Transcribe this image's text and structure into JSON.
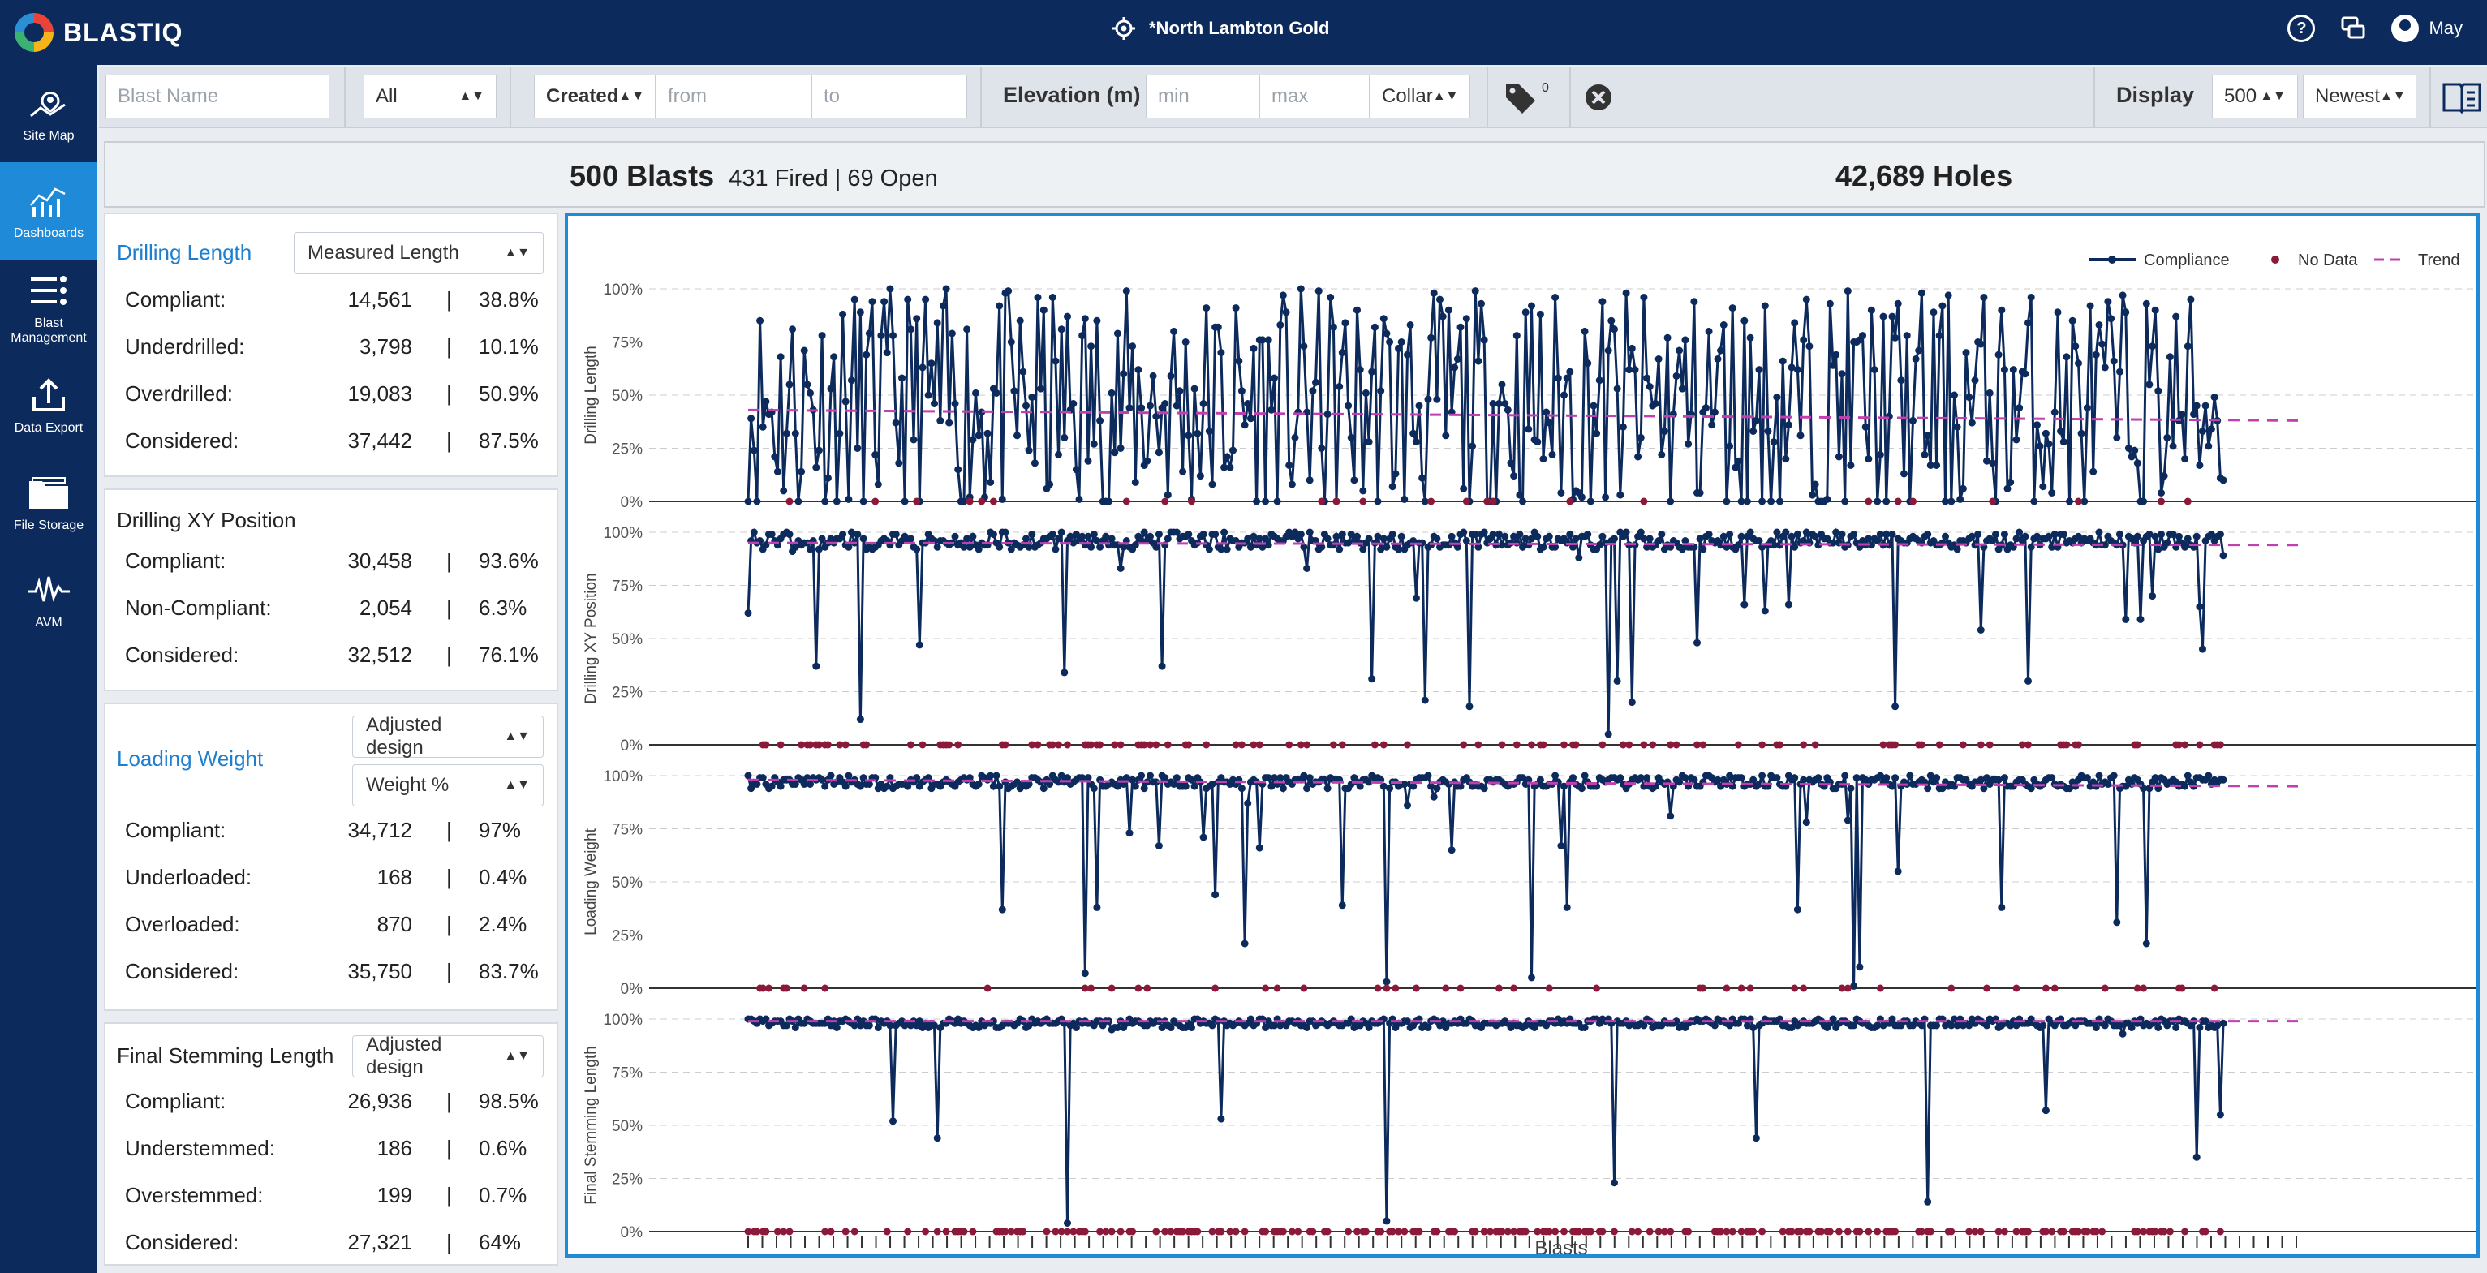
{
  "app": {
    "logo": "BLASTIQ",
    "site": "*North Lambton Gold",
    "user": "May",
    "help_icon": "question-icon",
    "chat_icon": "chat-icon"
  },
  "sidebar": {
    "items": [
      {
        "label": "Site Map",
        "icon": "map-icon",
        "active": false
      },
      {
        "label": "Dashboards",
        "icon": "chart-icon",
        "active": true
      },
      {
        "label": "Blast Management",
        "icon": "list-icon",
        "active": false
      },
      {
        "label": "Data Export",
        "icon": "upload-icon",
        "active": false
      },
      {
        "label": "File Storage",
        "icon": "folder-icon",
        "active": false
      },
      {
        "label": "AVM",
        "icon": "wave-icon",
        "active": false
      }
    ]
  },
  "filters": {
    "blast_name_placeholder": "Blast Name",
    "status": "All",
    "date_type": "Created",
    "from_placeholder": "from",
    "to_placeholder": "to",
    "elevation_label": "Elevation (m)",
    "min_placeholder": "min",
    "max_placeholder": "max",
    "elevation_ref": "Collar",
    "tag_count": "0",
    "display_label": "Display",
    "display_count": "500",
    "sort": "Newest"
  },
  "summary": {
    "blasts": "500 Blasts",
    "fired_open": "431 Fired | 69 Open",
    "holes": "42,689 Holes"
  },
  "cards": [
    {
      "title": "Drilling Length",
      "selects": [
        "Measured Length"
      ],
      "rows": [
        {
          "label": "Compliant:",
          "count": "14,561",
          "pct": "38.8%"
        },
        {
          "label": "Underdrilled:",
          "count": "3,798",
          "pct": "10.1%"
        },
        {
          "label": "Overdrilled:",
          "count": "19,083",
          "pct": "50.9%"
        },
        {
          "label": "Considered:",
          "count": "37,442",
          "pct": "87.5%"
        }
      ]
    },
    {
      "title": "Drilling XY Position",
      "selects": [],
      "rows": [
        {
          "label": "Compliant:",
          "count": "30,458",
          "pct": "93.6%"
        },
        {
          "label": "Non-Compliant:",
          "count": "2,054",
          "pct": "6.3%"
        },
        {
          "label": "Considered:",
          "count": "32,512",
          "pct": "76.1%"
        }
      ]
    },
    {
      "title": "Loading Weight",
      "selects": [
        "Adjusted design",
        "Weight %"
      ],
      "rows": [
        {
          "label": "Compliant:",
          "count": "34,712",
          "pct": "97%"
        },
        {
          "label": "Underloaded:",
          "count": "168",
          "pct": "0.4%"
        },
        {
          "label": "Overloaded:",
          "count": "870",
          "pct": "2.4%"
        },
        {
          "label": "Considered:",
          "count": "35,750",
          "pct": "83.7%"
        }
      ]
    },
    {
      "title": "Final Stemming Length",
      "selects": [
        "Adjusted design"
      ],
      "rows": [
        {
          "label": "Compliant:",
          "count": "26,936",
          "pct": "98.5%"
        },
        {
          "label": "Understemmed:",
          "count": "186",
          "pct": "0.6%"
        },
        {
          "label": "Overstemmed:",
          "count": "199",
          "pct": "0.7%"
        },
        {
          "label": "Considered:",
          "count": "27,321",
          "pct": "64%"
        }
      ]
    }
  ],
  "chart_data": {
    "type": "line",
    "xlabel": "Blasts",
    "legend": {
      "placement": "top-right",
      "entries": [
        "Compliance",
        "No Data",
        "Trend"
      ]
    },
    "colors": {
      "compliance": "#0c2a5c",
      "no_data": "#8b1a3a",
      "trend": "#c040b0"
    },
    "ylim": [
      0,
      100
    ],
    "yticks": [
      "0%",
      "25%",
      "50%",
      "75%",
      "100%"
    ],
    "n_blasts": 500,
    "panels": [
      {
        "ylabel": "Drilling Length",
        "trend": [
          43,
          38
        ],
        "mean": 45,
        "spread": 55,
        "dip_prob": 0.0,
        "seed": 11,
        "nodata_prob": 0.06
      },
      {
        "ylabel": "Drilling XY Position",
        "trend": [
          95,
          94
        ],
        "mean": 95,
        "spread": 8,
        "dip_prob": 0.08,
        "seed": 23,
        "nodata_prob": 0.22
      },
      {
        "ylabel": "Loading Weight",
        "trend": [
          98,
          95
        ],
        "mean": 97,
        "spread": 6,
        "dip_prob": 0.06,
        "seed": 37,
        "nodata_prob": 0.08
      },
      {
        "ylabel": "Final Stemming Length",
        "trend": [
          99,
          99
        ],
        "mean": 98,
        "spread": 4,
        "dip_prob": 0.04,
        "seed": 53,
        "nodata_prob": 0.35
      }
    ]
  }
}
